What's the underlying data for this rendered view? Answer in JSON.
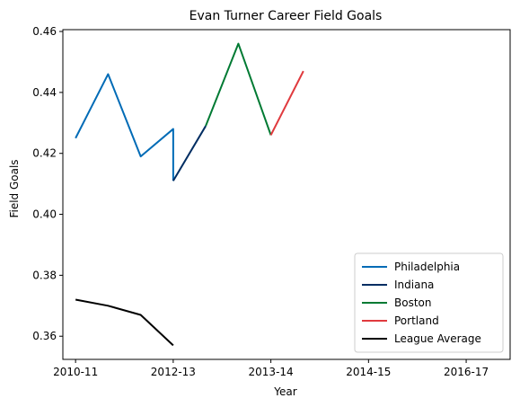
{
  "chart_data": {
    "type": "line",
    "title": "Evan Turner Career Field Goals",
    "xlabel": "Year",
    "ylabel": "Field Goals",
    "x_ticks": [
      {
        "label": "2010-11",
        "pos": 0
      },
      {
        "label": "2012-13",
        "pos": 1
      },
      {
        "label": "2013-14",
        "pos": 2
      },
      {
        "label": "2014-15",
        "pos": 3
      },
      {
        "label": "2016-17",
        "pos": 4
      }
    ],
    "xlim": [
      -0.13,
      4.45
    ],
    "ylim": [
      0.3524,
      0.4606
    ],
    "y_ticks": [
      0.36,
      0.38,
      0.4,
      0.42,
      0.44,
      0.46
    ],
    "grid": false,
    "legend_position": "lower-right",
    "series": [
      {
        "name": "Philadelphia",
        "color": "#006bb6",
        "points": [
          [
            0,
            0.425
          ],
          [
            0.333,
            0.446
          ],
          [
            0.667,
            0.419
          ],
          [
            1.0,
            0.428
          ],
          [
            1.0,
            0.411
          ]
        ]
      },
      {
        "name": "Indiana",
        "color": "#002d62",
        "points": [
          [
            1.0,
            0.411
          ],
          [
            1.333,
            0.429
          ]
        ]
      },
      {
        "name": "Boston",
        "color": "#007a33",
        "points": [
          [
            1.333,
            0.429
          ],
          [
            1.667,
            0.456
          ],
          [
            2.0,
            0.426
          ]
        ]
      },
      {
        "name": "Portland",
        "color": "#e03a3e",
        "points": [
          [
            2.0,
            0.426
          ],
          [
            2.333,
            0.447
          ]
        ]
      },
      {
        "name": "League Average",
        "color": "#000000",
        "points": [
          [
            0,
            0.372
          ],
          [
            0.333,
            0.37
          ],
          [
            0.667,
            0.367
          ],
          [
            1.0,
            0.357
          ]
        ]
      }
    ]
  }
}
